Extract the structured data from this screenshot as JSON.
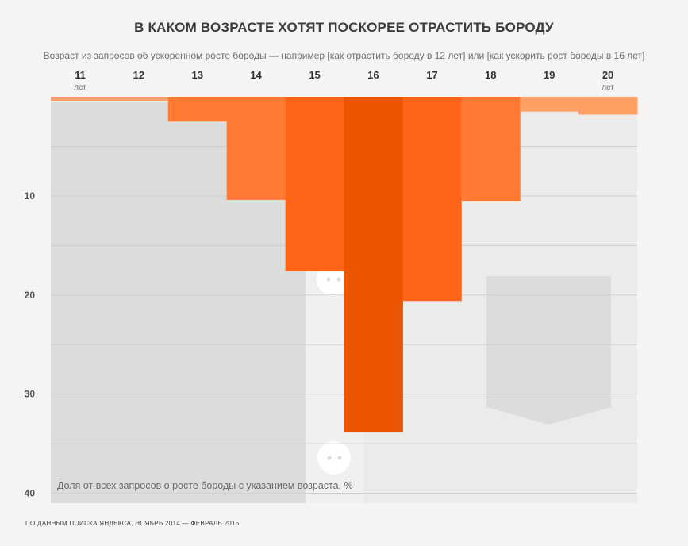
{
  "title": "В КАКОМ ВОЗРАСТЕ ХОТЯТ ПОСКОРЕЕ ОТРАСТИТЬ БОРОДУ",
  "subtitle": "Возраст из запросов об ускоренном росте бороды — например [как отрастить бороду в 12 лет] или [как ускорить рост бороды в 16 лет]",
  "footer": "ПО ДАННЫМ ПОИСКА ЯНДЕКСА, НОЯБРЬ 2014 — ФЕВРАЛЬ 2015",
  "chart_data": {
    "type": "bar",
    "orientation": "downward",
    "categories": [
      "11",
      "12",
      "13",
      "14",
      "15",
      "16",
      "17",
      "18",
      "19",
      "20"
    ],
    "first_category_unit": "лет",
    "last_category_unit": "лет",
    "values": [
      0.4,
      0.4,
      2.5,
      10.4,
      17.6,
      33.8,
      20.6,
      10.5,
      1.5,
      1.8
    ],
    "ylabel": "Доля от всех запросов о росте бороды с указанием возраста, %",
    "ylim": [
      0,
      41
    ],
    "yticks": [
      10,
      20,
      30,
      40
    ],
    "grid": true,
    "colors": {
      "light": "#ff9f64",
      "medium": "#ff7a33",
      "strong": "#ff6519",
      "max": "#eb5500",
      "background": "#f5f4f2",
      "plot": "#ebebea",
      "silhouette": "#dcdcdb",
      "grid": "#cfcfce"
    }
  }
}
